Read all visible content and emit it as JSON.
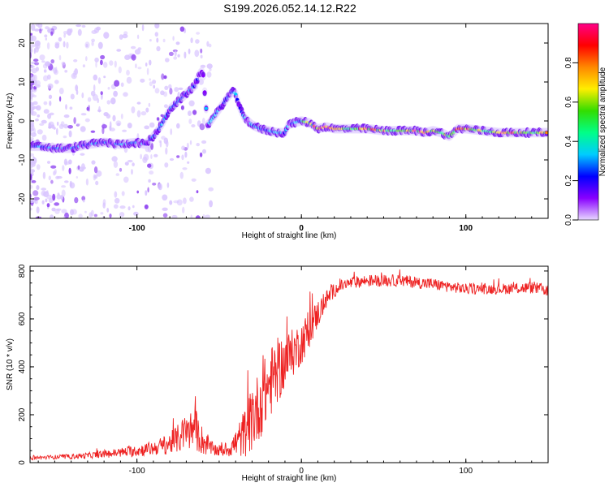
{
  "title": "S199.2026.052.14.12.R22",
  "chart_data": [
    {
      "type": "heatmap",
      "name": "spectrogram",
      "xlabel": "Height of straight line (km)",
      "ylabel": "Frequency (Hz)",
      "xlim": [
        -165,
        150
      ],
      "ylim": [
        -25,
        25
      ],
      "xticks": [
        -100,
        0,
        100
      ],
      "xtick_labels": [
        "-100",
        "0",
        "100"
      ],
      "yticks": [
        -20,
        -10,
        0,
        10,
        20
      ],
      "ytick_labels": [
        "-20",
        "-10",
        "0",
        "10",
        "20"
      ],
      "ridge": {
        "description": "dominant spectral ridge (frequency vs height)",
        "x": [
          -160,
          -150,
          -140,
          -130,
          -120,
          -110,
          -100,
          -95,
          -90,
          -85,
          -80,
          -75,
          -70,
          -65,
          -62,
          -60,
          -57,
          -55,
          -50,
          -45,
          -42,
          -40,
          -38,
          -35,
          -30,
          -25,
          -20,
          -15,
          -10,
          -8,
          -5,
          0,
          5,
          10,
          15,
          20,
          30,
          40,
          50,
          60,
          70,
          75,
          80,
          85,
          90,
          95,
          100,
          110,
          120,
          130,
          140,
          148
        ],
        "y": [
          -6.5,
          -7,
          -7,
          -6,
          -5.5,
          -6,
          -5.5,
          -6,
          -4,
          -1,
          3,
          5,
          7,
          9,
          12,
          13,
          -1,
          0,
          3,
          6,
          7.5,
          7,
          4,
          1,
          -1,
          -2,
          -2.5,
          -3,
          -3,
          -1,
          -0.5,
          0,
          -0.5,
          -2,
          -1.5,
          -2,
          -2,
          -2,
          -2.5,
          -2.5,
          -2.5,
          -3,
          -2.5,
          -3,
          -4,
          -2,
          -2,
          -2.5,
          -3,
          -3,
          -3,
          -3
        ]
      },
      "colorbar": {
        "label": "Normalized spectral amplitude",
        "range": [
          0,
          1
        ],
        "ticks": [
          0.0,
          0.2,
          0.4,
          0.6,
          0.8
        ],
        "tick_labels": [
          "0.0",
          "0.2",
          "0.4",
          "0.6",
          "0.8"
        ],
        "colors": [
          "#e8d8ff",
          "#8800ff",
          "#0000ff",
          "#00ccff",
          "#00ff88",
          "#33dd00",
          "#ffee00",
          "#ff8800",
          "#ff0000",
          "#ff0088"
        ]
      }
    },
    {
      "type": "line",
      "name": "snr",
      "xlabel": "Height of straight line (km)",
      "ylabel": "SNR (10 * v/v)",
      "xlim": [
        -165,
        150
      ],
      "ylim": [
        0,
        820
      ],
      "xticks": [
        -100,
        0,
        100
      ],
      "xtick_labels": [
        "-100",
        "0",
        "100"
      ],
      "yticks": [
        0,
        200,
        400,
        600,
        800
      ],
      "ytick_labels": [
        "0",
        "200",
        "400",
        "600",
        "800"
      ],
      "color": "#ee2222",
      "trend": {
        "x": [
          -165,
          -140,
          -120,
          -100,
          -90,
          -80,
          -75,
          -70,
          -65,
          -60,
          -55,
          -50,
          -45,
          -40,
          -35,
          -30,
          -25,
          -20,
          -15,
          -10,
          -5,
          0,
          5,
          10,
          15,
          20,
          25,
          30,
          40,
          60,
          80,
          100,
          120,
          140,
          150
        ],
        "y": [
          20,
          25,
          35,
          50,
          60,
          80,
          100,
          130,
          140,
          90,
          60,
          50,
          55,
          80,
          120,
          180,
          250,
          320,
          380,
          420,
          460,
          500,
          560,
          620,
          680,
          720,
          740,
          750,
          760,
          760,
          745,
          725,
          725,
          730,
          720
        ],
        "spread": [
          8,
          10,
          15,
          25,
          30,
          45,
          60,
          80,
          90,
          60,
          30,
          25,
          30,
          60,
          100,
          140,
          150,
          150,
          140,
          120,
          100,
          90,
          80,
          60,
          40,
          30,
          25,
          25,
          25,
          25,
          25,
          22,
          22,
          25,
          25
        ]
      }
    }
  ]
}
